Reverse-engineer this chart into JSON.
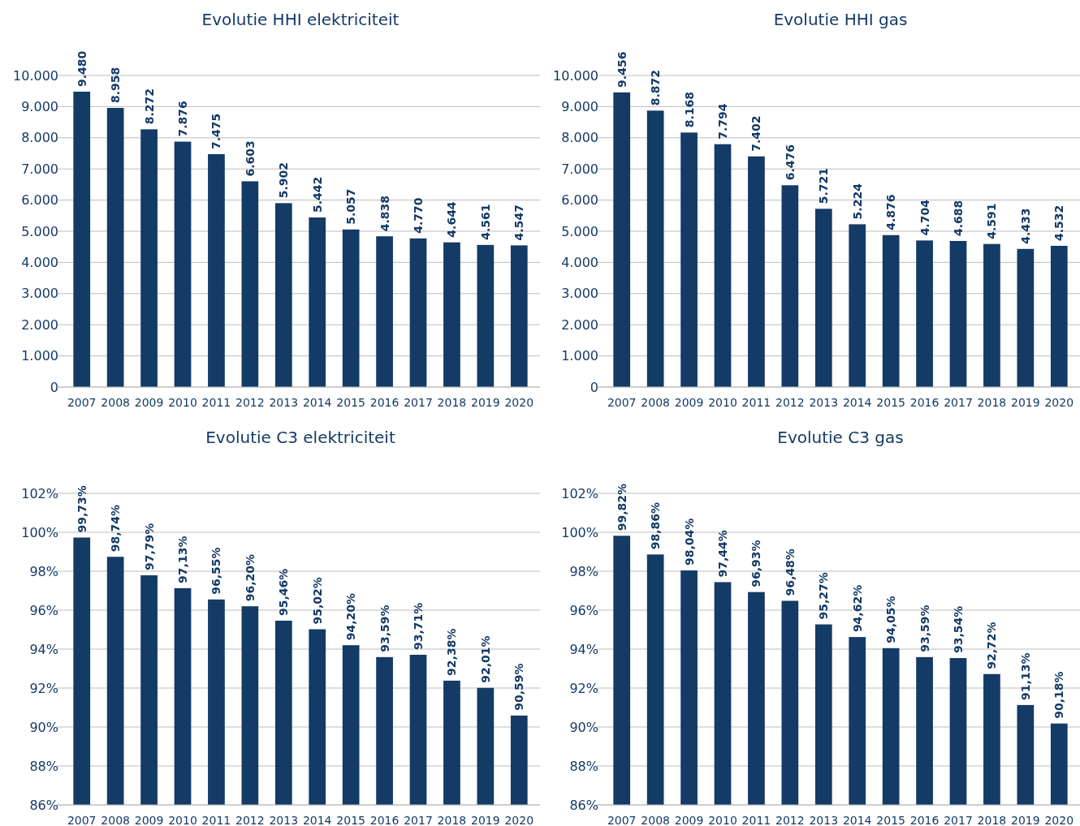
{
  "chart_data": [
    {
      "type": "bar",
      "title": "Evolutie HHI elektriciteit",
      "categories": [
        "2007",
        "2008",
        "2009",
        "2010",
        "2011",
        "2012",
        "2013",
        "2014",
        "2015",
        "2016",
        "2017",
        "2018",
        "2019",
        "2020"
      ],
      "values": [
        9480,
        8958,
        8272,
        7876,
        7475,
        6603,
        5902,
        5442,
        5057,
        4838,
        4770,
        4644,
        4561,
        4547
      ],
      "value_labels": [
        "9.480",
        "8.958",
        "8.272",
        "7.876",
        "7.475",
        "6.603",
        "5.902",
        "5.442",
        "5.057",
        "4.838",
        "4.770",
        "4.644",
        "4.561",
        "4.547"
      ],
      "color": "#143a66",
      "ylim": [
        0,
        10000
      ],
      "yticks": [
        0,
        {
          "value": 1000,
          "label": "1.000"
        },
        {
          "value": 2000,
          "label": "2.000"
        },
        {
          "value": 3000,
          "label": "3.000"
        },
        {
          "value": 4000,
          "label": "4.000"
        },
        {
          "value": 5000,
          "label": "5.000"
        },
        {
          "value": 6000,
          "label": "6.000"
        },
        {
          "value": 7000,
          "label": "7.000"
        },
        {
          "value": 8000,
          "label": "8.000"
        },
        {
          "value": 9000,
          "label": "9.000"
        },
        {
          "value": 10000,
          "label": "10.000"
        }
      ],
      "grid": "y"
    },
    {
      "type": "bar",
      "title": "Evolutie HHI gas",
      "categories": [
        "2007",
        "2008",
        "2009",
        "2010",
        "2011",
        "2012",
        "2013",
        "2014",
        "2015",
        "2016",
        "2017",
        "2018",
        "2019",
        "2020"
      ],
      "values": [
        9456,
        8872,
        8168,
        7794,
        7402,
        6476,
        5721,
        5224,
        4876,
        4704,
        4688,
        4591,
        4433,
        4532
      ],
      "value_labels": [
        "9.456",
        "8.872",
        "8.168",
        "7.794",
        "7.402",
        "6.476",
        "5.721",
        "5.224",
        "4.876",
        "4.704",
        "4.688",
        "4.591",
        "4.433",
        "4.532"
      ],
      "color": "#143a66",
      "ylim": [
        0,
        10000
      ],
      "yticks": [
        0,
        {
          "value": 1000,
          "label": "1.000"
        },
        {
          "value": 2000,
          "label": "2.000"
        },
        {
          "value": 3000,
          "label": "3.000"
        },
        {
          "value": 4000,
          "label": "4.000"
        },
        {
          "value": 5000,
          "label": "5.000"
        },
        {
          "value": 6000,
          "label": "6.000"
        },
        {
          "value": 7000,
          "label": "7.000"
        },
        {
          "value": 8000,
          "label": "8.000"
        },
        {
          "value": 9000,
          "label": "9.000"
        },
        {
          "value": 10000,
          "label": "10.000"
        }
      ],
      "grid": "y"
    },
    {
      "type": "bar",
      "title": "Evolutie C3 elektriciteit",
      "categories": [
        "2007",
        "2008",
        "2009",
        "2010",
        "2011",
        "2012",
        "2013",
        "2014",
        "2015",
        "2016",
        "2017",
        "2018",
        "2019",
        "2020"
      ],
      "values": [
        99.73,
        98.74,
        97.79,
        97.13,
        96.55,
        96.2,
        95.46,
        95.02,
        94.2,
        93.59,
        93.71,
        92.38,
        92.01,
        90.59
      ],
      "value_labels": [
        "99,73%",
        "98,74%",
        "97,79%",
        "97,13%",
        "96,55%",
        "96,20%",
        "95,46%",
        "95,02%",
        "94,20%",
        "93,59%",
        "93,71%",
        "92,38%",
        "92,01%",
        "90,59%"
      ],
      "color": "#143a66",
      "ylim": [
        86,
        102
      ],
      "yticks": [
        {
          "value": 86,
          "label": "86%"
        },
        {
          "value": 88,
          "label": "88%"
        },
        {
          "value": 90,
          "label": "90%"
        },
        {
          "value": 92,
          "label": "92%"
        },
        {
          "value": 94,
          "label": "94%"
        },
        {
          "value": 96,
          "label": "96%"
        },
        {
          "value": 98,
          "label": "98%"
        },
        {
          "value": 100,
          "label": "100%"
        },
        {
          "value": 102,
          "label": "102%"
        }
      ],
      "grid": "y"
    },
    {
      "type": "bar",
      "title": "Evolutie C3 gas",
      "categories": [
        "2007",
        "2008",
        "2009",
        "2010",
        "2011",
        "2012",
        "2013",
        "2014",
        "2015",
        "2016",
        "2017",
        "2018",
        "2019",
        "2020"
      ],
      "values": [
        99.82,
        98.86,
        98.04,
        97.44,
        96.93,
        96.48,
        95.27,
        94.62,
        94.05,
        93.59,
        93.54,
        92.72,
        91.13,
        90.18
      ],
      "value_labels": [
        "99,82%",
        "98,86%",
        "98,04%",
        "97,44%",
        "96,93%",
        "96,48%",
        "95,27%",
        "94,62%",
        "94,05%",
        "93,59%",
        "93,54%",
        "92,72%",
        "91,13%",
        "90,18%"
      ],
      "color": "#143a66",
      "ylim": [
        86,
        102
      ],
      "yticks": [
        {
          "value": 86,
          "label": "86%"
        },
        {
          "value": 88,
          "label": "88%"
        },
        {
          "value": 90,
          "label": "90%"
        },
        {
          "value": 92,
          "label": "92%"
        },
        {
          "value": 94,
          "label": "94%"
        },
        {
          "value": 96,
          "label": "96%"
        },
        {
          "value": 98,
          "label": "98%"
        },
        {
          "value": 100,
          "label": "100%"
        },
        {
          "value": 102,
          "label": "102%"
        }
      ],
      "grid": "y"
    }
  ]
}
